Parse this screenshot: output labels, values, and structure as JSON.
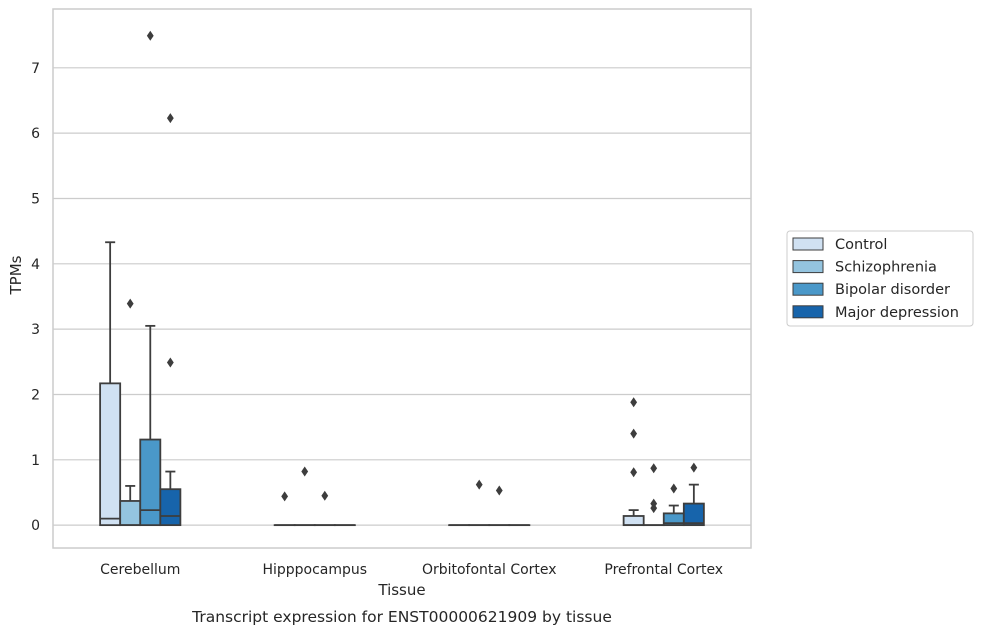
{
  "chart_data": {
    "type": "box",
    "title": "",
    "caption": "Transcript expression for ENST00000621909 by tissue",
    "xlabel": "Tissue",
    "ylabel": "TPMs",
    "ylim": [
      -0.35,
      7.9
    ],
    "yticks": [
      0,
      1,
      2,
      3,
      4,
      5,
      6,
      7
    ],
    "grid": true,
    "legend_position": "right",
    "categories": [
      "Cerebellum",
      "Hipppocampus",
      "Orbitofontal Cortex",
      "Prefrontal Cortex"
    ],
    "series": [
      {
        "name": "Control",
        "color": "#d0e1f2",
        "boxes": [
          {
            "q1": 0,
            "median": 0.1,
            "q3": 2.17,
            "whisker_low": 0,
            "whisker_high": 4.33,
            "outliers": []
          },
          {
            "q1": 0,
            "median": 0,
            "q3": 0,
            "whisker_low": 0,
            "whisker_high": 0,
            "outliers": [
              0.44
            ]
          },
          {
            "q1": 0,
            "median": 0,
            "q3": 0,
            "whisker_low": 0,
            "whisker_high": 0,
            "outliers": []
          },
          {
            "q1": 0,
            "median": 0,
            "q3": 0.14,
            "whisker_low": 0,
            "whisker_high": 0.23,
            "outliers": [
              1.88,
              1.4,
              0.81
            ]
          }
        ]
      },
      {
        "name": "Schizophrenia",
        "color": "#94c4df",
        "boxes": [
          {
            "q1": 0,
            "median": 0,
            "q3": 0.37,
            "whisker_low": 0,
            "whisker_high": 0.6,
            "outliers": [
              3.39
            ]
          },
          {
            "q1": 0,
            "median": 0,
            "q3": 0,
            "whisker_low": 0,
            "whisker_high": 0,
            "outliers": [
              0.82
            ]
          },
          {
            "q1": 0,
            "median": 0,
            "q3": 0,
            "whisker_low": 0,
            "whisker_high": 0,
            "outliers": [
              0.62
            ]
          },
          {
            "q1": 0,
            "median": 0,
            "q3": 0,
            "whisker_low": 0,
            "whisker_high": 0,
            "outliers": [
              0.87,
              0.33,
              0.26
            ]
          }
        ]
      },
      {
        "name": "Bipolar disorder",
        "color": "#4a98c9",
        "boxes": [
          {
            "q1": 0,
            "median": 0.23,
            "q3": 1.31,
            "whisker_low": 0,
            "whisker_high": 3.05,
            "outliers": [
              7.49
            ]
          },
          {
            "q1": 0,
            "median": 0,
            "q3": 0,
            "whisker_low": 0,
            "whisker_high": 0,
            "outliers": [
              0.45
            ]
          },
          {
            "q1": 0,
            "median": 0,
            "q3": 0,
            "whisker_low": 0,
            "whisker_high": 0,
            "outliers": [
              0.53
            ]
          },
          {
            "q1": 0,
            "median": 0.03,
            "q3": 0.18,
            "whisker_low": 0,
            "whisker_high": 0.3,
            "outliers": [
              0.56
            ]
          }
        ]
      },
      {
        "name": "Major depression",
        "color": "#1764ab",
        "boxes": [
          {
            "q1": 0,
            "median": 0.14,
            "q3": 0.55,
            "whisker_low": 0,
            "whisker_high": 0.82,
            "outliers": [
              6.23,
              2.49
            ]
          },
          {
            "q1": 0,
            "median": 0,
            "q3": 0,
            "whisker_low": 0,
            "whisker_high": 0,
            "outliers": []
          },
          {
            "q1": 0,
            "median": 0,
            "q3": 0,
            "whisker_low": 0,
            "whisker_high": 0,
            "outliers": []
          },
          {
            "q1": 0,
            "median": 0.03,
            "q3": 0.33,
            "whisker_low": 0,
            "whisker_high": 0.62,
            "outliers": [
              0.88
            ]
          }
        ]
      }
    ]
  }
}
